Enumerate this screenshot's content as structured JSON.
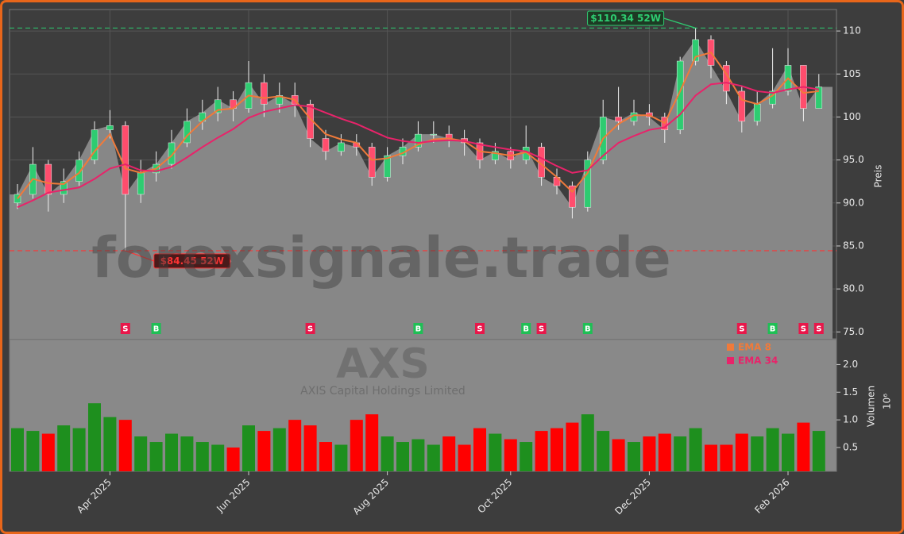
{
  "chart_data": {
    "type": "candlestick",
    "watermark": "forexsignale.trade",
    "ticker": "AXS",
    "company": "AXIS Capital Holdings Limited",
    "ylabel": "Preis",
    "volume_label": "Volumen",
    "volume_offset": "10⁶",
    "categories": [
      null,
      null,
      null,
      null,
      null,
      null,
      "Apr 2025",
      null,
      null,
      null,
      null,
      null,
      null,
      null,
      null,
      "Jun 2025",
      null,
      null,
      null,
      null,
      null,
      null,
      null,
      null,
      "Aug 2025",
      null,
      null,
      null,
      null,
      null,
      null,
      null,
      "Oct 2025",
      null,
      null,
      null,
      null,
      null,
      null,
      null,
      null,
      "Dec 2025",
      null,
      null,
      null,
      null,
      null,
      null,
      null,
      null,
      "Feb 2026",
      null,
      null
    ],
    "open": [
      90,
      91,
      94.5,
      91,
      92.5,
      95,
      98.5,
      99,
      91,
      93.5,
      94.5,
      97,
      99.5,
      100.5,
      102,
      101,
      104,
      101.5,
      102.5,
      101.5,
      97.5,
      96,
      97,
      96.5,
      93,
      95.5,
      96.5,
      98,
      98,
      97.5,
      97,
      95,
      96,
      95,
      96.5,
      93,
      92,
      89.5,
      95,
      100,
      99.5,
      100.5,
      100,
      98.5,
      106.5,
      109,
      106,
      103,
      99.5,
      101.5,
      103,
      106,
      101
    ],
    "high": [
      92.2,
      96.5,
      95,
      94,
      96,
      99.5,
      100.8,
      99.5,
      95,
      96,
      98.5,
      101,
      102,
      103.5,
      103,
      106.5,
      105,
      104,
      104,
      102,
      98.5,
      98,
      98,
      97,
      96.5,
      97.5,
      99.5,
      99.5,
      99,
      98.5,
      97.5,
      97,
      96.5,
      99,
      97,
      94,
      92.5,
      96,
      102,
      103.5,
      102,
      101.5,
      100.5,
      107,
      110.34,
      109.5,
      106.5,
      103.5,
      103,
      108,
      108,
      106,
      105
    ],
    "low": [
      89.3,
      90.5,
      89,
      90,
      92,
      94.5,
      97.5,
      84.45,
      90,
      92.5,
      94,
      96.5,
      98.5,
      99.5,
      99.5,
      100.5,
      100,
      100.5,
      100,
      96.5,
      95,
      95.5,
      95.5,
      92,
      92.5,
      94.5,
      96,
      97,
      96.5,
      95.5,
      94,
      94.5,
      94,
      94.5,
      92,
      91,
      88.2,
      89,
      94.5,
      98.5,
      99,
      99,
      97,
      98,
      106,
      104.5,
      101.5,
      98.2,
      99,
      101,
      102.5,
      99.5,
      101
    ],
    "close": [
      91,
      94.5,
      91,
      92.5,
      95,
      98.5,
      99,
      91,
      93.5,
      94.5,
      97,
      99.5,
      100.5,
      102,
      101,
      104,
      101.5,
      102.5,
      101.5,
      97.5,
      96,
      97,
      96.5,
      93,
      95.5,
      96.5,
      98,
      98,
      97.5,
      97,
      95,
      96,
      95,
      96.5,
      93,
      92,
      89.5,
      95,
      100,
      99.5,
      100.5,
      100,
      98.5,
      106.5,
      109,
      106,
      103,
      99.5,
      101.5,
      103,
      106,
      101,
      103.5
    ],
    "volume": [
      0.85,
      0.8,
      0.75,
      0.9,
      0.85,
      1.3,
      1.05,
      1.0,
      0.7,
      0.6,
      0.75,
      0.7,
      0.6,
      0.55,
      0.5,
      0.9,
      0.8,
      0.85,
      1.0,
      0.9,
      0.6,
      0.55,
      1.0,
      1.1,
      0.7,
      0.6,
      0.65,
      0.55,
      0.7,
      0.55,
      0.85,
      0.75,
      0.65,
      0.6,
      0.8,
      0.85,
      0.95,
      1.1,
      0.8,
      0.65,
      0.6,
      0.7,
      0.75,
      0.7,
      0.85,
      0.55,
      0.55,
      0.75,
      0.7,
      0.85,
      0.75,
      0.95,
      0.8
    ],
    "ema": [
      {
        "name": "EMA 8",
        "color": "#f07a3a",
        "values": [
          90.5,
          92.8,
          92.3,
          92.2,
          93.5,
          96,
          98,
          94,
          93.5,
          94,
          95.5,
          97.8,
          99.5,
          100.8,
          101,
          102.5,
          102.2,
          102.4,
          102,
          99.8,
          98,
          97.4,
          97,
          95,
          95.2,
          95.8,
          96.8,
          97.4,
          97.5,
          97.2,
          96,
          95.8,
          95.5,
          95.9,
          94.5,
          93,
          91.3,
          93.5,
          97.5,
          99.2,
          100.2,
          100.2,
          99.3,
          103,
          107,
          107.5,
          105,
          102,
          101.5,
          102.5,
          104.5,
          102.8,
          103
        ]
      },
      {
        "name": "EMA 34",
        "color": "#e8236a",
        "values": [
          89.5,
          90.3,
          91.2,
          91.5,
          91.8,
          92.8,
          94,
          94.5,
          93.8,
          93.7,
          94.2,
          95.3,
          96.5,
          97.6,
          98.6,
          99.9,
          100.6,
          101,
          101.4,
          101.2,
          100.5,
          99.8,
          99.2,
          98.4,
          97.6,
          97.2,
          97,
          97.2,
          97.3,
          97.2,
          96.8,
          96.5,
          96.2,
          96,
          95.2,
          94.3,
          93.5,
          93.8,
          95.5,
          97,
          97.8,
          98.5,
          98.8,
          100.3,
          102.5,
          103.8,
          104,
          103.6,
          103,
          102.8,
          103.2,
          103.5,
          103.2
        ]
      }
    ],
    "up_color": "#2ecc71",
    "down_color": "#ff4d6d",
    "volume_up_color": "#1e8f1e",
    "volume_down_color": "#ff0000",
    "ylim": [
      74.2,
      112.5
    ],
    "yticks": [
      {
        "value": 75,
        "label": "75.0"
      },
      {
        "value": 80,
        "label": "80.0"
      },
      {
        "value": 85,
        "label": "85.0"
      },
      {
        "value": 90,
        "label": "90.0"
      },
      {
        "value": 95,
        "label": "95.0"
      },
      100,
      105,
      110
    ],
    "volume_ylim": [
      0.07,
      2.45
    ],
    "volume_yticks": [
      0.5,
      {
        "value": 1,
        "label": "1.0"
      },
      1.5,
      {
        "value": 2,
        "label": "2.0"
      }
    ],
    "grid": true,
    "annotations": [
      {
        "label": "$110.34 52W",
        "value": 110.34,
        "at": 44,
        "color": "#2ecc71"
      },
      {
        "label": "$84.45 52W",
        "value": 84.45,
        "at": 7,
        "color": "#ff3333"
      }
    ],
    "signals": [
      {
        "at": 7,
        "label": "S"
      },
      {
        "at": 9,
        "label": "B"
      },
      {
        "at": 19,
        "label": "S"
      },
      {
        "at": 26,
        "label": "B"
      },
      {
        "at": 30,
        "label": "S"
      },
      {
        "at": 33,
        "label": "B"
      },
      {
        "at": 34,
        "label": "S"
      },
      {
        "at": 37,
        "label": "B"
      },
      {
        "at": 47,
        "label": "S"
      },
      {
        "at": 49,
        "label": "B"
      },
      {
        "at": 51,
        "label": "S"
      },
      {
        "at": 52,
        "label": "S"
      }
    ],
    "buy_color": "#1fbf55",
    "sell_color": "#e8174a"
  }
}
